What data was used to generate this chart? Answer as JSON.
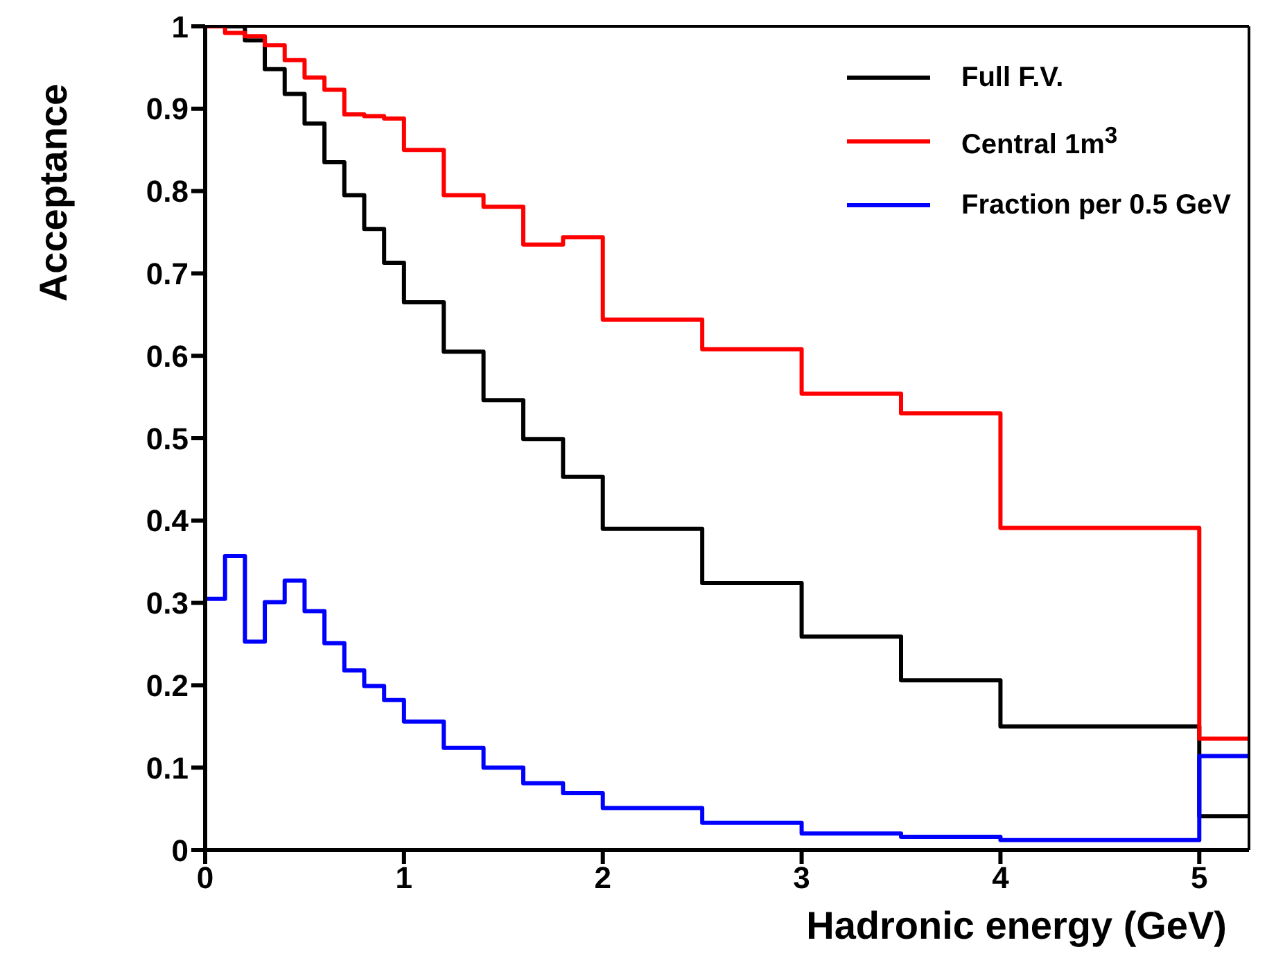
{
  "chart_data": {
    "type": "step",
    "xlabel": "Hadronic energy (GeV)",
    "ylabel": "Acceptance",
    "x": [
      0,
      0.1,
      0.2,
      0.3,
      0.4,
      0.5,
      0.6,
      0.7,
      0.8,
      0.9,
      1.0,
      1.2,
      1.4,
      1.6,
      1.8,
      2.0,
      2.5,
      3.0,
      3.5,
      4.0,
      5.0,
      5.25
    ],
    "series": [
      {
        "name": "Full F.V.",
        "color": "#000000",
        "values": [
          1.0,
          1.0,
          0.983,
          0.948,
          0.918,
          0.882,
          0.835,
          0.795,
          0.754,
          0.713,
          0.665,
          0.605,
          0.546,
          0.499,
          0.453,
          0.39,
          0.324,
          0.259,
          0.206,
          0.15,
          0.041,
          0.041
        ]
      },
      {
        "name": "Central 1m$^{3}$",
        "color": "#ff0000",
        "values": [
          1.0,
          0.992,
          0.988,
          0.977,
          0.959,
          0.938,
          0.923,
          0.893,
          0.891,
          0.888,
          0.85,
          0.795,
          0.781,
          0.735,
          0.744,
          0.644,
          0.608,
          0.554,
          0.53,
          0.391,
          0.135,
          0.135
        ]
      },
      {
        "name": "Fraction per 0.5 GeV",
        "color": "#0000ff",
        "values": [
          0.305,
          0.357,
          0.253,
          0.301,
          0.327,
          0.29,
          0.251,
          0.218,
          0.199,
          0.182,
          0.156,
          0.124,
          0.1,
          0.081,
          0.069,
          0.051,
          0.033,
          0.02,
          0.016,
          0.012,
          0.114,
          0.114
        ]
      }
    ],
    "xlim": [
      0,
      5.25
    ],
    "xticks": [
      0,
      1,
      2,
      3,
      4,
      5
    ],
    "ylim": [
      0,
      1
    ],
    "yticks": [
      0,
      0.1,
      0.2,
      0.3,
      0.4,
      0.5,
      0.6,
      0.7,
      0.8,
      0.9,
      1
    ],
    "grid": false,
    "legend": "top right",
    "line_style": "solid",
    "marker": "none"
  }
}
